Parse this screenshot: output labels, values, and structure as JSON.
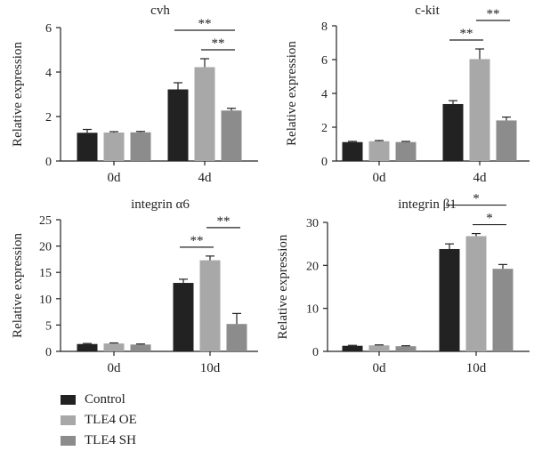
{
  "legend": {
    "items": [
      {
        "label": "Control",
        "color": "#222222"
      },
      {
        "label": "TLE4 OE",
        "color": "#a8a8a8"
      },
      {
        "label": "TLE4 SH",
        "color": "#8c8c8c"
      }
    ]
  },
  "chart_data": [
    {
      "type": "bar",
      "title": "cvh",
      "ylabel": "Relative expression",
      "xlabel": "",
      "categories": [
        "0d",
        "4d"
      ],
      "ylim": [
        0,
        6
      ],
      "yticks": [
        0,
        2,
        4,
        6
      ],
      "series": [
        {
          "name": "Control",
          "values": [
            1.27,
            3.22
          ],
          "errors": [
            0.15,
            0.3
          ]
        },
        {
          "name": "TLE4 OE",
          "values": [
            1.28,
            4.22
          ],
          "errors": [
            0.04,
            0.38
          ]
        },
        {
          "name": "TLE4 SH",
          "values": [
            1.29,
            2.27
          ],
          "errors": [
            0.04,
            0.1
          ]
        }
      ],
      "significance": [
        {
          "category": 1,
          "from": 0,
          "to": 2,
          "label": "**"
        },
        {
          "category": 1,
          "from": 1,
          "to": 2,
          "label": "**"
        }
      ]
    },
    {
      "type": "bar",
      "title": "c-kit",
      "ylabel": "Relative expression",
      "xlabel": "",
      "categories": [
        "0d",
        "4d"
      ],
      "ylim": [
        0,
        8
      ],
      "yticks": [
        0,
        2,
        4,
        6,
        8
      ],
      "series": [
        {
          "name": "Control",
          "values": [
            1.12,
            3.37
          ],
          "errors": [
            0.04,
            0.2
          ]
        },
        {
          "name": "TLE4 OE",
          "values": [
            1.17,
            6.03
          ],
          "errors": [
            0.04,
            0.6
          ]
        },
        {
          "name": "TLE4 SH",
          "values": [
            1.12,
            2.4
          ],
          "errors": [
            0.04,
            0.2
          ]
        }
      ],
      "significance": [
        {
          "category": 1,
          "from": 0,
          "to": 1,
          "label": "**"
        },
        {
          "category": 1,
          "from": 1,
          "to": 2,
          "label": "**"
        }
      ]
    },
    {
      "type": "bar",
      "title": "integrin α6",
      "ylabel": "Relative expression",
      "xlabel": "",
      "categories": [
        "0d",
        "10d"
      ],
      "ylim": [
        0,
        25
      ],
      "yticks": [
        0,
        5,
        10,
        15,
        20,
        25
      ],
      "series": [
        {
          "name": "Control",
          "values": [
            1.4,
            13.0
          ],
          "errors": [
            0.1,
            0.7
          ]
        },
        {
          "name": "TLE4 OE",
          "values": [
            1.5,
            17.3
          ],
          "errors": [
            0.1,
            0.8
          ]
        },
        {
          "name": "TLE4 SH",
          "values": [
            1.3,
            5.2
          ],
          "errors": [
            0.1,
            2.0
          ]
        }
      ],
      "significance": [
        {
          "category": 1,
          "from": 0,
          "to": 1,
          "label": "**"
        },
        {
          "category": 1,
          "from": 1,
          "to": 2,
          "label": "**"
        }
      ]
    },
    {
      "type": "bar",
      "title": "integrin β1",
      "ylabel": "Relative expression",
      "xlabel": "",
      "categories": [
        "0d",
        "10d"
      ],
      "ylim": [
        0,
        30
      ],
      "yticks": [
        0,
        10,
        20,
        30
      ],
      "series": [
        {
          "name": "Control",
          "values": [
            1.3,
            23.8
          ],
          "errors": [
            0.1,
            1.2
          ]
        },
        {
          "name": "TLE4 OE",
          "values": [
            1.4,
            26.8
          ],
          "errors": [
            0.1,
            0.6
          ]
        },
        {
          "name": "TLE4 SH",
          "values": [
            1.2,
            19.2
          ],
          "errors": [
            0.1,
            1.0
          ]
        }
      ],
      "significance": [
        {
          "category": 1,
          "from": 0,
          "to": 2,
          "label": "*"
        },
        {
          "category": 1,
          "from": 1,
          "to": 2,
          "label": "*"
        }
      ]
    }
  ]
}
